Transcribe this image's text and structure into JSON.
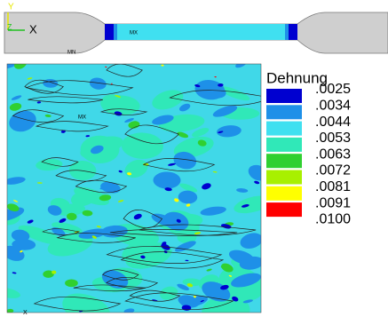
{
  "specimen": {
    "axis_y": "Y",
    "axis_z": "Z",
    "axis_x": "X",
    "max_label": "MX",
    "min_label": "MN"
  },
  "contour": {
    "axis_x": "X",
    "max_label": "MX"
  },
  "legend": {
    "title": "Dehnung",
    "colors": [
      "#0000d0",
      "#1e90e8",
      "#40e0f0",
      "#30e8b8",
      "#30d030",
      "#a8f000",
      "#ffff00",
      "#ff0000"
    ],
    "labels": [
      ".0025",
      ".0034",
      ".0044",
      ".0053",
      ".0063",
      ".0072",
      ".0081",
      ".0091",
      ".0100"
    ]
  }
}
